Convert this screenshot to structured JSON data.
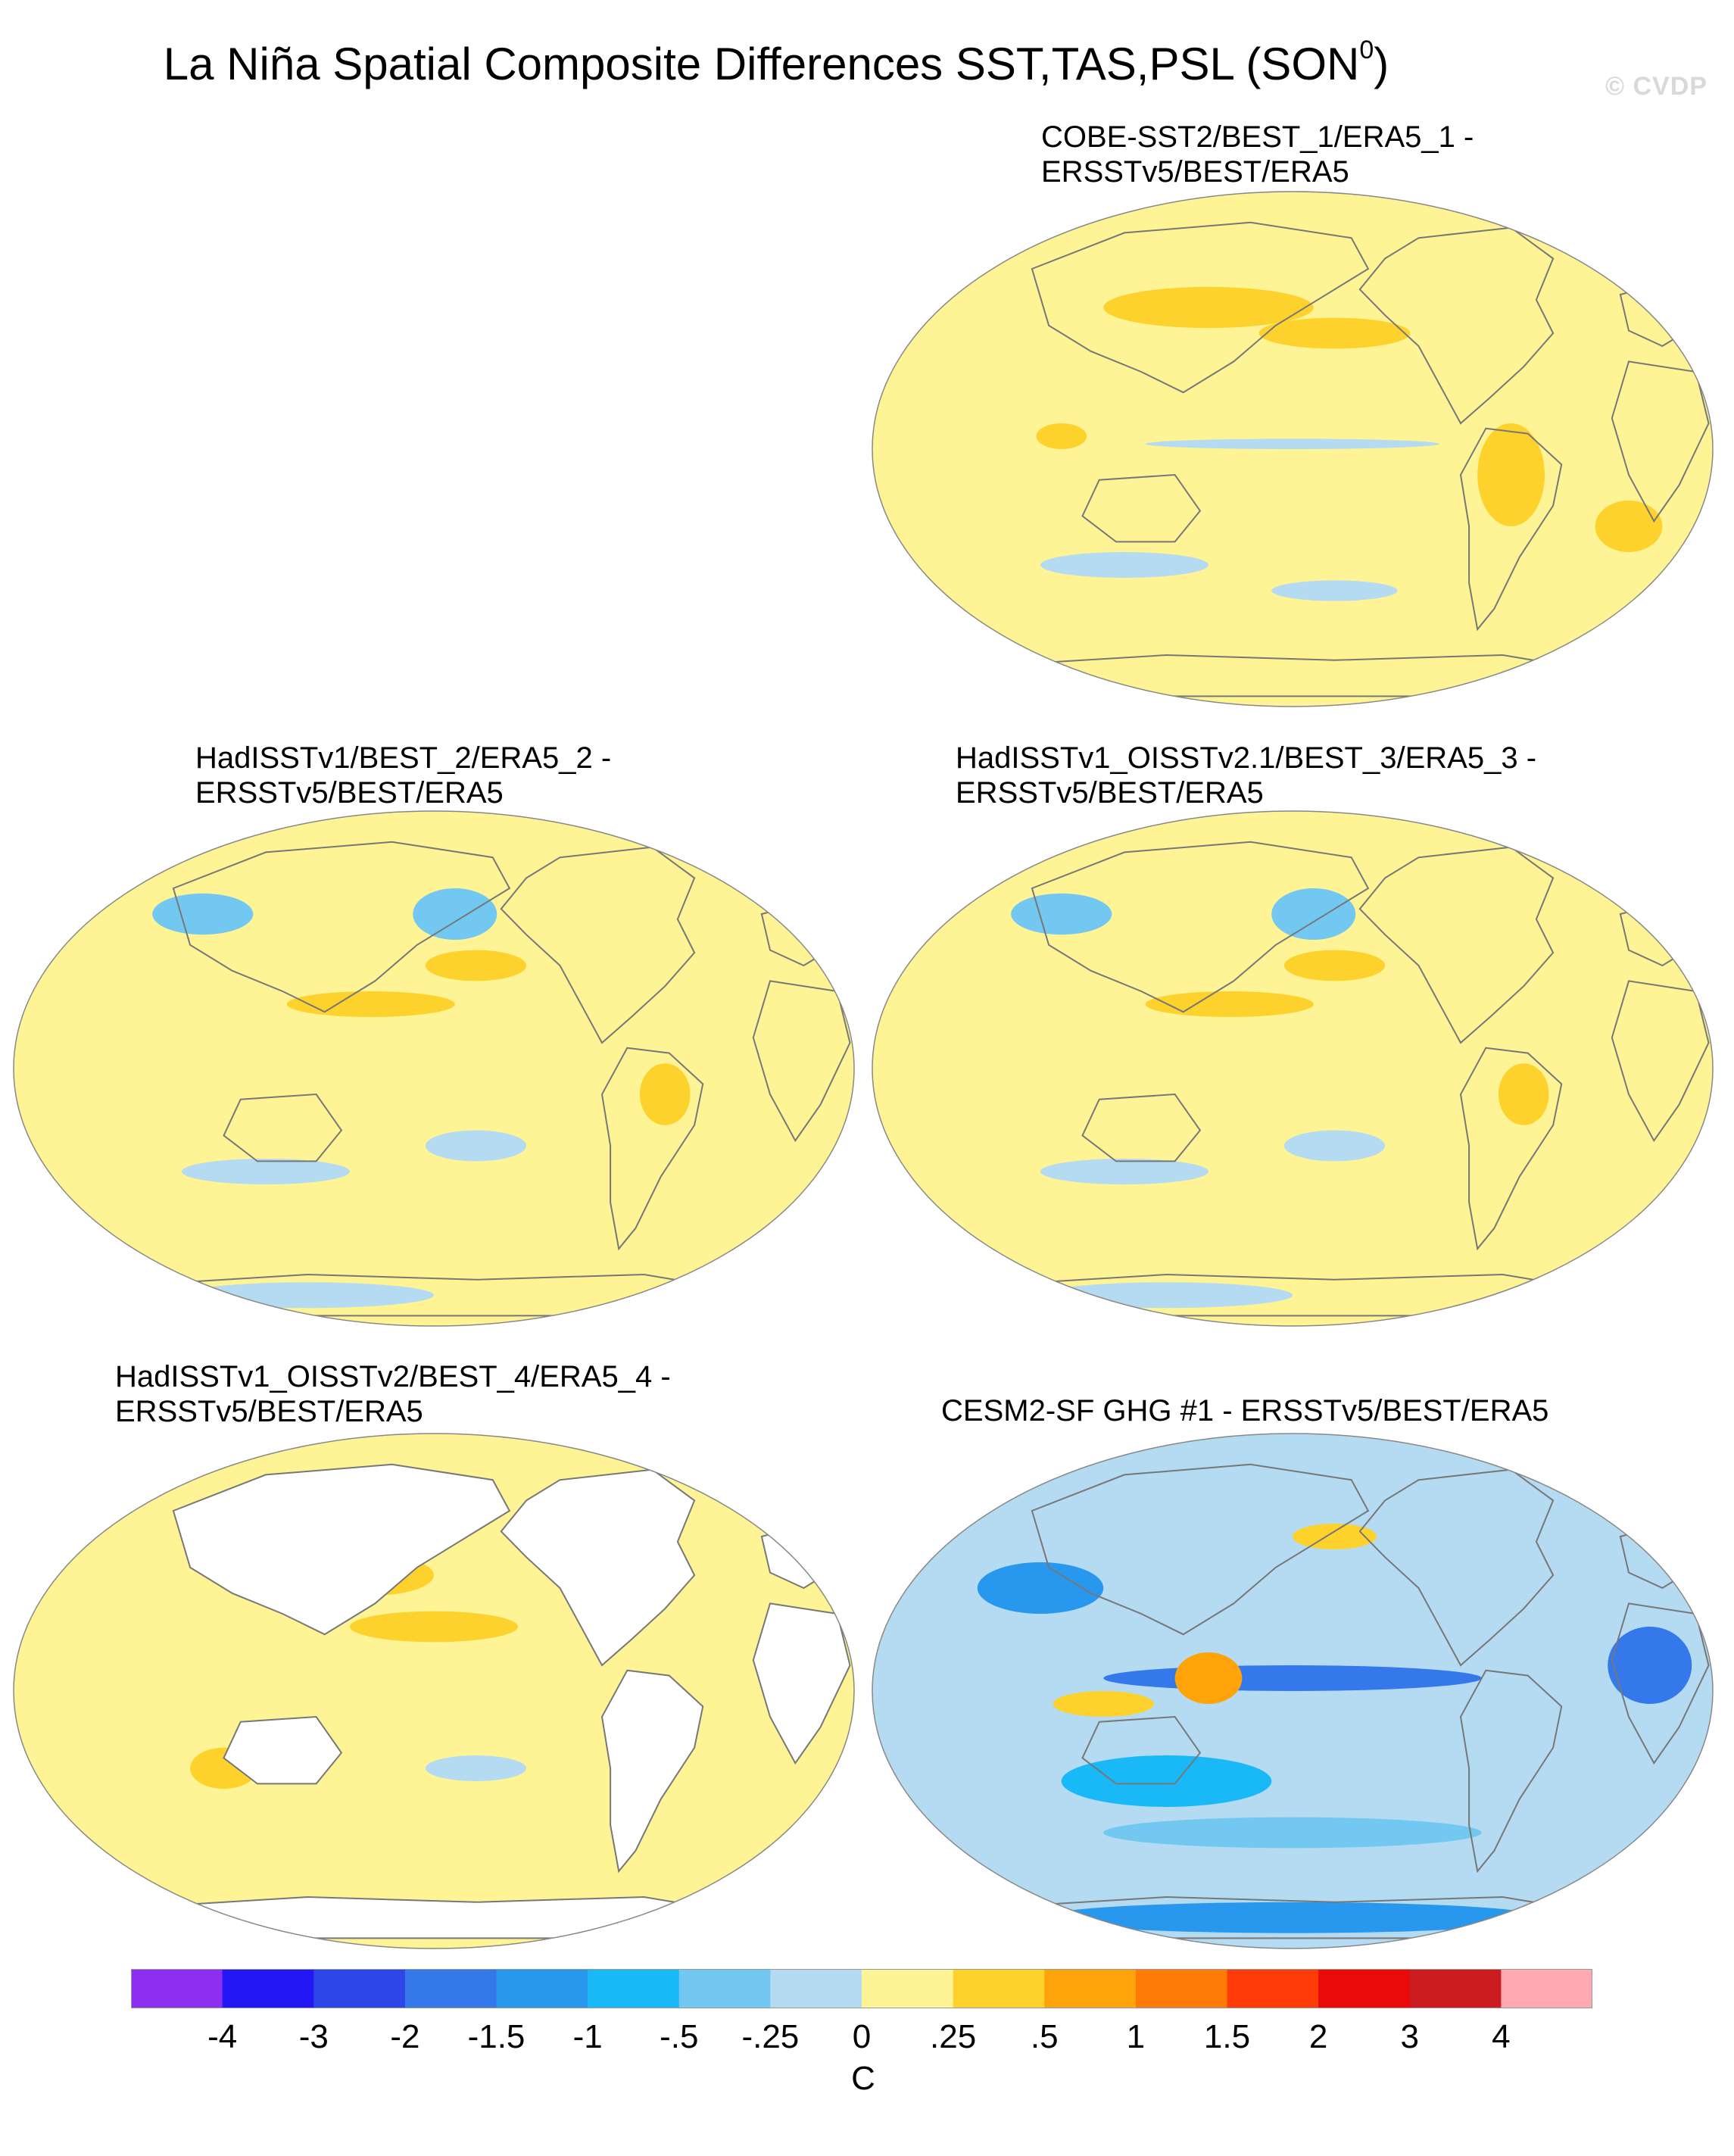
{
  "figure": {
    "title": "La Niña Spatial Composite Differences SST,TAS,PSL (SON",
    "title_superscript": "0",
    "title_close": ")",
    "watermark": "© CVDP"
  },
  "panels": [
    {
      "line1": "COBE-SST2/BEST_1/ERA5_1 -",
      "line2": "ERSSTv5/BEST/ERA5",
      "style": "mostly-warm",
      "accent": "#fbd523"
    },
    {
      "line1": "HadISSTv1/BEST_2/ERA5_2 -",
      "line2": "ERSSTv5/BEST/ERA5",
      "style": "warm-with-cool-north",
      "accent": "#fbd523"
    },
    {
      "line1": "HadISSTv1_OISSTv2.1/BEST_3/ERA5_3 -",
      "line2": "ERSSTv5/BEST/ERA5",
      "style": "warm-with-cool-north",
      "accent": "#fbd523"
    },
    {
      "line1": "HadISSTv1_OISSTv2/BEST_4/ERA5_4 -",
      "line2": "ERSSTv5/BEST/ERA5",
      "style": "ocean-only",
      "accent": "#fbd523"
    },
    {
      "line1": "CESM2-SF GHG #1 - ERSSTv5/BEST/ERA5",
      "line2": "",
      "style": "mostly-cool",
      "accent": "#5fb8ec"
    }
  ],
  "colorbar": {
    "unit": "C",
    "labels": [
      "-4",
      "-3",
      "-2",
      "-1.5",
      "-1",
      "-.5",
      "-.25",
      "0",
      ".25",
      ".5",
      "1",
      "1.5",
      "2",
      "3",
      "4"
    ],
    "colors": [
      "#8c2ff0",
      "#2317f5",
      "#2d46e8",
      "#3478ec",
      "#2898ee",
      "#18b9f6",
      "#72c8f1",
      "#b4dbf2",
      "#fef495",
      "#fed22c",
      "#fea40a",
      "#fe7b05",
      "#fe3c0a",
      "#ea0a0a",
      "#cd1c1f",
      "#ffaab0"
    ]
  }
}
